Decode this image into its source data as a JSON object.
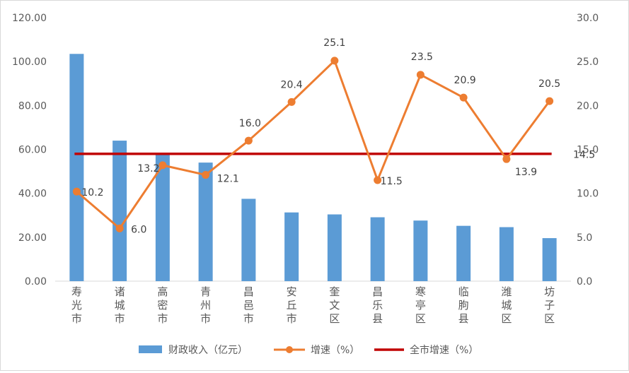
{
  "chart_data": {
    "type": "bar",
    "categories": [
      "寿光市",
      "诸城市",
      "高密市",
      "青州市",
      "昌邑市",
      "安丘市",
      "奎文区",
      "昌乐县",
      "寒亭区",
      "临朐县",
      "潍城区",
      "坊子区"
    ],
    "series": [
      {
        "name": "财政收入（亿元）",
        "type": "bar",
        "axis": "left",
        "color": "#5b9bd5",
        "values": [
          103.5,
          64.0,
          58.0,
          54.0,
          37.5,
          31.3,
          30.4,
          29.1,
          27.6,
          25.2,
          24.6,
          19.6
        ]
      },
      {
        "name": "增速（%）",
        "type": "line",
        "axis": "right",
        "color": "#ed7d31",
        "values": [
          10.2,
          6.0,
          13.2,
          12.1,
          16.0,
          20.4,
          25.1,
          11.5,
          23.5,
          20.9,
          13.9,
          20.5
        ],
        "labels": [
          "10.2",
          "6.0",
          "13.2",
          "12.1",
          "16.0",
          "20.4",
          "25.1",
          "11.5",
          "23.5",
          "20.9",
          "13.9",
          "20.5"
        ]
      },
      {
        "name": "全市增速（%）",
        "type": "line",
        "axis": "right",
        "color": "#c00000",
        "value": 14.5,
        "label": "14.5",
        "label_color": "#c00000"
      }
    ],
    "y_left": {
      "ylim": [
        0,
        120
      ],
      "ticks": [
        "0.00",
        "20.00",
        "40.00",
        "60.00",
        "80.00",
        "100.00",
        "120.00"
      ]
    },
    "y_right": {
      "ylim": [
        0,
        30
      ],
      "ticks": [
        "0.0",
        "5.0",
        "10.0",
        "15.0",
        "20.0",
        "25.0",
        "30.0"
      ]
    },
    "grid": false,
    "legend": "bottom",
    "title": "",
    "xlabel": "",
    "ylabel": ""
  }
}
